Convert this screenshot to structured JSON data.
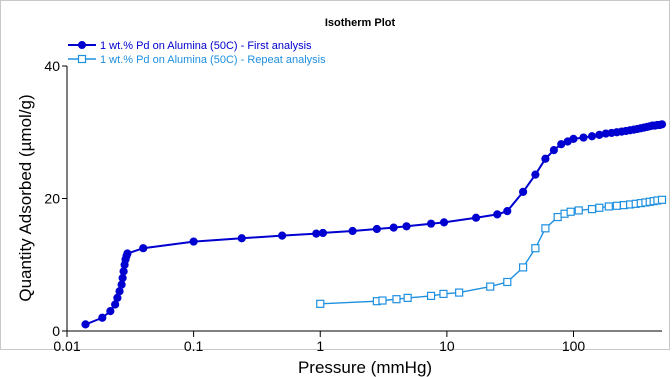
{
  "chart_data": {
    "type": "scatter",
    "title": "Isotherm Plot",
    "xlabel": "Pressure (mmHg)",
    "ylabel": "Quantity Adsorbed (µmol/g)",
    "xscale": "log",
    "xlim": [
      0.01,
      500
    ],
    "ylim": [
      0,
      40
    ],
    "xticks": [
      0.01,
      0.1,
      1,
      10,
      100
    ],
    "xtick_labels": [
      "0.01",
      "0.1",
      "1",
      "10",
      "100"
    ],
    "yticks": [
      0,
      20,
      40
    ],
    "ytick_labels": [
      "0",
      "20",
      "40"
    ],
    "grid": false,
    "legend_position": "top-left",
    "series": [
      {
        "name": "1 wt.% Pd on Alumina (50C) - First analysis",
        "color": "#0000d0",
        "marker": "filled-circle",
        "x": [
          0.014,
          0.019,
          0.022,
          0.024,
          0.025,
          0.026,
          0.027,
          0.0275,
          0.028,
          0.0285,
          0.029,
          0.0295,
          0.03,
          0.04,
          0.1,
          0.24,
          0.5,
          0.93,
          1.05,
          1.8,
          2.8,
          3.8,
          4.8,
          7.5,
          9.5,
          17,
          25,
          30,
          40,
          50,
          60,
          70,
          80,
          90,
          100,
          120,
          140,
          160,
          180,
          200,
          220,
          240,
          260,
          280,
          300,
          320,
          340,
          360,
          380,
          400,
          420,
          440,
          460,
          480,
          500
        ],
        "y": [
          1.0,
          2.0,
          3.0,
          4.0,
          5.0,
          6.0,
          7.0,
          8.0,
          9.0,
          10.0,
          10.8,
          11.3,
          11.7,
          12.5,
          13.5,
          14.0,
          14.4,
          14.7,
          14.8,
          15.1,
          15.4,
          15.6,
          15.8,
          16.2,
          16.4,
          17.1,
          17.6,
          18.1,
          21.0,
          23.6,
          26.0,
          27.3,
          28.2,
          28.6,
          29.0,
          29.2,
          29.4,
          29.6,
          29.8,
          29.9,
          30.0,
          30.1,
          30.2,
          30.3,
          30.4,
          30.5,
          30.6,
          30.7,
          30.8,
          30.9,
          31.0,
          31.0,
          31.1,
          31.1,
          31.2
        ]
      },
      {
        "name": "1 wt.% Pd on Alumina (50C) - Repeat analysis",
        "color": "#1e90e0",
        "marker": "open-square",
        "x": [
          1.0,
          2.8,
          3.1,
          4.0,
          4.9,
          7.5,
          9.4,
          12.5,
          22,
          30,
          40,
          50,
          60,
          75,
          85,
          95,
          110,
          140,
          160,
          190,
          220,
          250,
          280,
          310,
          340,
          370,
          400,
          430,
          460,
          500
        ],
        "y": [
          4.1,
          4.5,
          4.6,
          4.8,
          5.0,
          5.3,
          5.6,
          5.8,
          6.7,
          7.4,
          9.6,
          12.5,
          15.5,
          17.2,
          17.7,
          18.0,
          18.2,
          18.4,
          18.6,
          18.8,
          18.9,
          19.0,
          19.1,
          19.2,
          19.3,
          19.4,
          19.5,
          19.6,
          19.7,
          19.8
        ]
      }
    ]
  }
}
